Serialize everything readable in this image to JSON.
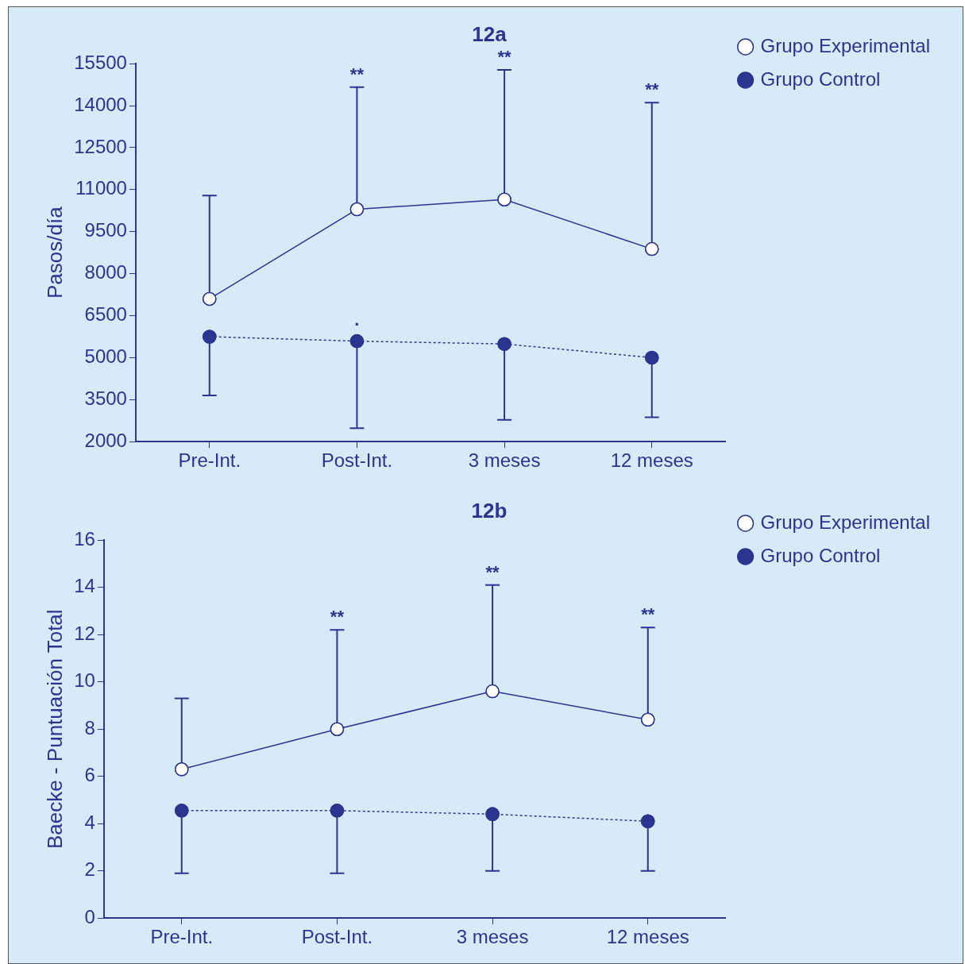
{
  "chart_data": [
    {
      "type": "line",
      "title": "12a",
      "ylabel": "Pasos/día",
      "categories": [
        "Pre-Int.",
        "Post-Int.",
        "3 meses",
        "12 meses"
      ],
      "ylim": [
        2000,
        15500
      ],
      "yticks": [
        2000,
        3500,
        5000,
        6500,
        8000,
        9500,
        11000,
        12500,
        14000,
        15500
      ],
      "legend": "top right",
      "series": [
        {
          "name": "Grupo Experimental",
          "color": "#2b3590",
          "values": [
            7100,
            10300,
            10650,
            8880
          ],
          "errors": [
            [
              7100,
              10790
            ],
            [
              10300,
              14660
            ],
            [
              10650,
              15280
            ],
            [
              8880,
              14110
            ]
          ],
          "marker": "circle",
          "line_style": "solid"
        },
        {
          "name": "Grupo Control",
          "color": "#2b3590",
          "values": [
            5750,
            5590,
            5490,
            5000
          ],
          "errors": [
            [
              3650,
              5750
            ],
            [
              2480,
              5590
            ],
            [
              2780,
              5490
            ],
            [
              2870,
              5000
            ]
          ],
          "marker": "circle",
          "line_style": "dotted"
        }
      ],
      "annotations": [
        {
          "text": "**",
          "x": "Post-Int.",
          "y": 14660
        },
        {
          "text": "**",
          "x": "3 meses",
          "y": 15280
        },
        {
          "text": "**",
          "x": "12 meses",
          "y": 14110
        },
        {
          "text": ".",
          "x": "Post-Int.",
          "y": 5900
        }
      ]
    },
    {
      "type": "line",
      "title": "12b",
      "ylabel": "Baecke - Puntuación Total",
      "categories": [
        "Pre-Int.",
        "Post-Int.",
        "3 meses",
        "12 meses"
      ],
      "ylim": [
        0,
        16
      ],
      "yticks": [
        0,
        2,
        4,
        6,
        8,
        10,
        12,
        14,
        16
      ],
      "legend": "top right",
      "series": [
        {
          "name": "Grupo Experimental",
          "color": "#2b3590",
          "values": [
            6.3,
            8.0,
            9.6,
            8.4
          ],
          "errors": [
            [
              6.3,
              9.3
            ],
            [
              8.0,
              12.2
            ],
            [
              9.6,
              14.1
            ],
            [
              8.4,
              12.3
            ]
          ],
          "marker": "circle",
          "line_style": "solid"
        },
        {
          "name": "Grupo Control",
          "color": "#2b3590",
          "values": [
            4.55,
            4.55,
            4.4,
            4.1
          ],
          "errors": [
            [
              1.9,
              4.55
            ],
            [
              1.9,
              4.55
            ],
            [
              2.0,
              4.4
            ],
            [
              2.0,
              4.1
            ]
          ],
          "marker": "circle",
          "line_style": "dotted"
        }
      ],
      "annotations": [
        {
          "text": "**",
          "x": "Post-Int.",
          "y": 12.2
        },
        {
          "text": "**",
          "x": "3 meses",
          "y": 14.1
        },
        {
          "text": "**",
          "x": "12 meses",
          "y": 12.3
        }
      ]
    }
  ]
}
